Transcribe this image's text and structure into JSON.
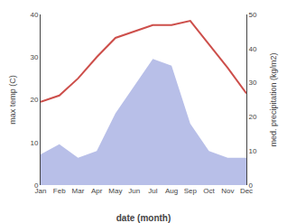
{
  "chart_data": {
    "type": "line",
    "categories": [
      "Jan",
      "Feb",
      "Mar",
      "Apr",
      "May",
      "Jun",
      "Jul",
      "Aug",
      "Sep",
      "Oct",
      "Nov",
      "Dec"
    ],
    "series": [
      {
        "type": "area",
        "axis": "y2",
        "color": "#b8bfe8",
        "values": [
          9,
          12,
          8,
          10,
          21,
          29,
          37,
          35,
          18,
          10,
          8,
          8
        ]
      },
      {
        "type": "line",
        "color": "#cd4f4b",
        "values": [
          19.5,
          21.0,
          25.0,
          30.0,
          34.5,
          36.0,
          37.5,
          37.5,
          38.5,
          33.0,
          27.5,
          21.5
        ]
      }
    ],
    "xlabel": "date (month)",
    "ylabel": "max temp (C)",
    "y2label": "med. precipitation (kg/m2)",
    "ylim": [
      0,
      40
    ],
    "yticks": [
      0,
      10,
      20,
      30,
      40
    ],
    "y2lim": [
      0,
      50
    ],
    "y2ticks": [
      0,
      10,
      20,
      30,
      40,
      50
    ],
    "grid": false
  }
}
